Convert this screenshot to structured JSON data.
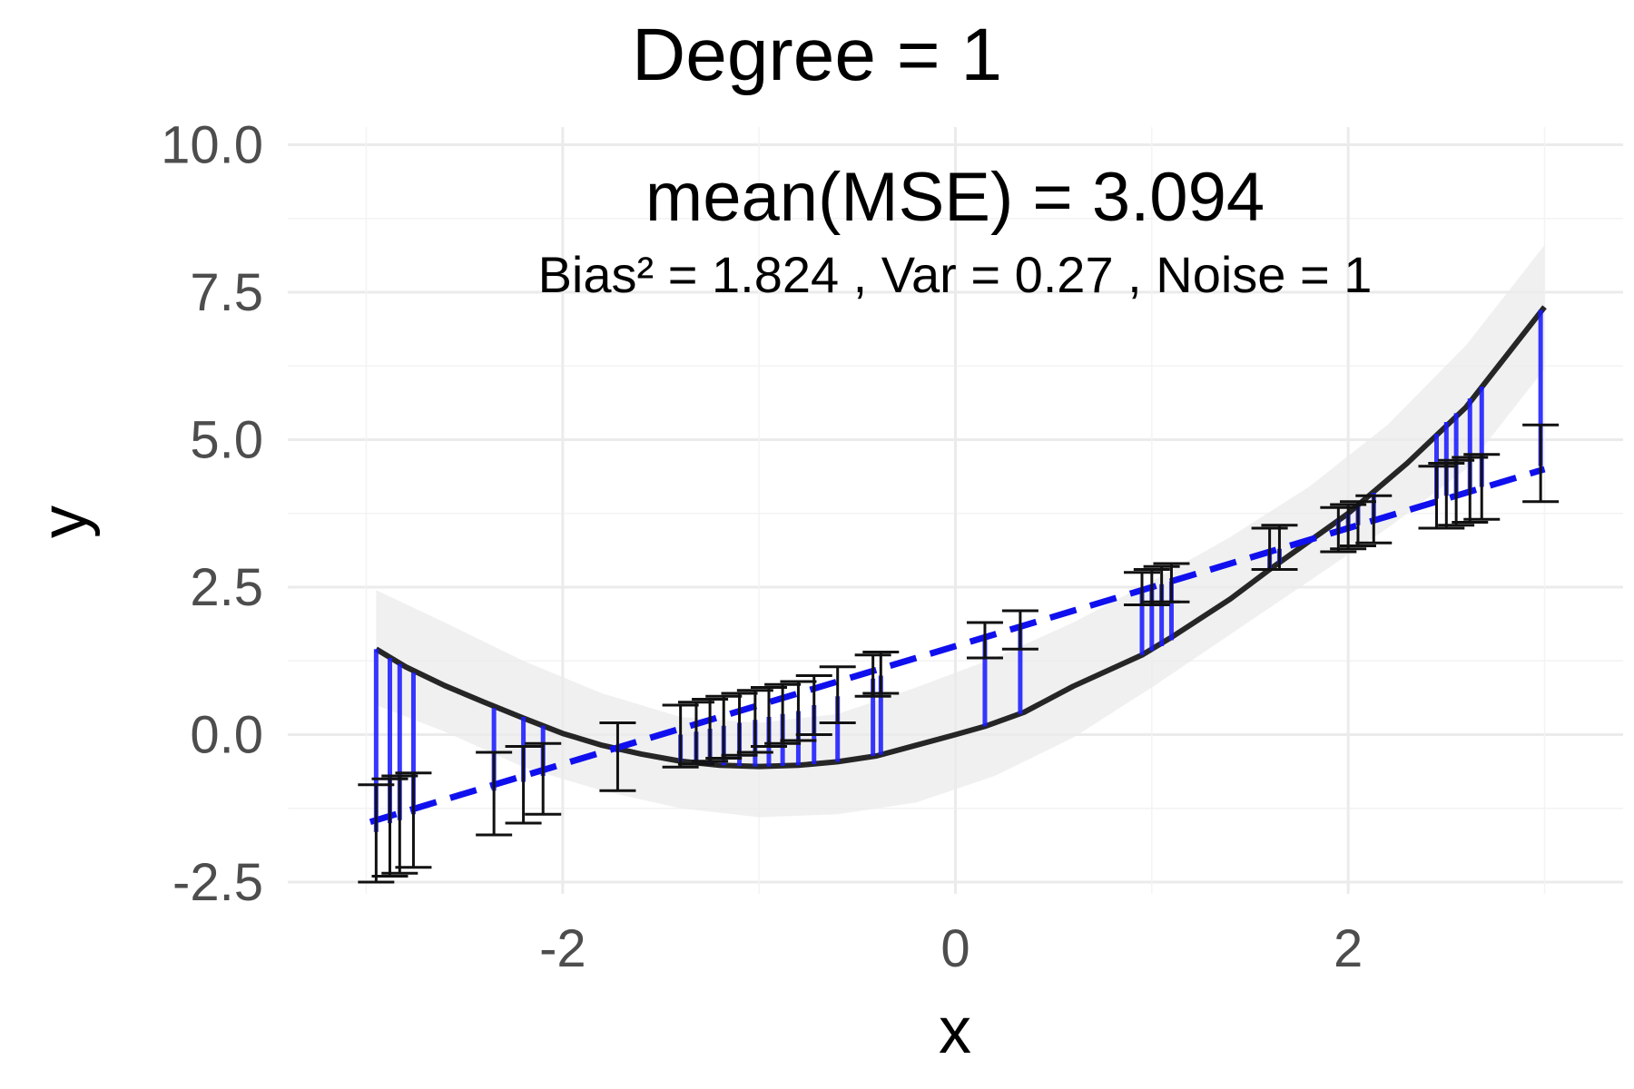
{
  "chart_data": {
    "type": "line",
    "title": "Degree = 1",
    "annotation_main": "mean(MSE) = 3.094",
    "annotation_sub": "Bias² = 1.824 , Var = 0.27 , Noise = 1",
    "xlabel": "x",
    "ylabel": "y",
    "xlim": [
      -3.4,
      3.4
    ],
    "ylim": [
      -2.7,
      10.3
    ],
    "x_ticks": [
      -2,
      0,
      2
    ],
    "x_tick_labels": [
      "-2",
      "0",
      "2"
    ],
    "y_ticks": [
      -2.5,
      0,
      2.5,
      5,
      7.5,
      10
    ],
    "y_tick_labels": [
      "-2.5",
      "0.0",
      "2.5",
      "5.0",
      "7.5",
      "10.0"
    ],
    "grid": true,
    "legend": "none",
    "colors": {
      "true_curve": "#262626",
      "fit_line": "#1010ee",
      "residual": "#1a1aff",
      "ribbon": "#ebebeb",
      "gridline": "#ebebeb",
      "errorbar": "#111111"
    },
    "fit_line": {
      "intercept": 1.5,
      "slope": 1.0
    },
    "true_curve": {
      "x": [
        -2.95,
        -2.8,
        -2.6,
        -2.4,
        -2.2,
        -2.0,
        -1.8,
        -1.6,
        -1.4,
        -1.2,
        -1.0,
        -0.8,
        -0.6,
        -0.4,
        -0.2,
        0.0,
        0.15,
        0.35,
        0.6,
        0.95,
        1.1,
        1.4,
        1.6,
        2.0,
        2.3,
        2.6,
        3.0
      ],
      "y": [
        1.45,
        1.15,
        0.83,
        0.55,
        0.28,
        0.02,
        -0.18,
        -0.33,
        -0.45,
        -0.52,
        -0.54,
        -0.52,
        -0.46,
        -0.36,
        -0.18,
        0.0,
        0.14,
        0.38,
        0.82,
        1.35,
        1.65,
        2.3,
        2.8,
        3.75,
        4.6,
        5.55,
        7.25
      ]
    },
    "ribbon": {
      "x": [
        -2.95,
        -2.6,
        -2.2,
        -1.8,
        -1.4,
        -1.0,
        -0.6,
        -0.2,
        0.2,
        0.6,
        1.0,
        1.4,
        1.8,
        2.2,
        2.6,
        3.0
      ],
      "lower": [
        0.5,
        0.05,
        -0.55,
        -0.95,
        -1.25,
        -1.4,
        -1.35,
        -1.15,
        -0.7,
        -0.05,
        0.8,
        1.7,
        2.6,
        3.5,
        4.5,
        6.2
      ],
      "upper": [
        2.45,
        1.9,
        1.25,
        0.7,
        0.3,
        0.2,
        0.35,
        0.8,
        1.3,
        1.9,
        2.6,
        3.35,
        4.2,
        5.25,
        6.6,
        8.3
      ]
    },
    "points": [
      {
        "x": -2.95,
        "pred": -1.65,
        "lo": -2.5,
        "hi": -0.85,
        "true": 1.45
      },
      {
        "x": -2.88,
        "pred": -1.5,
        "lo": -2.4,
        "hi": -0.75,
        "true": 1.3
      },
      {
        "x": -2.83,
        "pred": -1.45,
        "lo": -2.35,
        "hi": -0.7,
        "true": 1.2
      },
      {
        "x": -2.76,
        "pred": -1.35,
        "lo": -2.25,
        "hi": -0.65,
        "true": 1.05
      },
      {
        "x": -2.35,
        "pred": -0.95,
        "lo": -1.7,
        "hi": -0.3,
        "true": 0.45
      },
      {
        "x": -2.2,
        "pred": -0.8,
        "lo": -1.5,
        "hi": -0.2,
        "true": 0.3
      },
      {
        "x": -2.1,
        "pred": -0.7,
        "lo": -1.35,
        "hi": -0.15,
        "true": 0.15
      },
      {
        "x": -1.72,
        "pred": -0.3,
        "lo": -0.95,
        "hi": 0.2,
        "true": -0.22
      },
      {
        "x": -1.4,
        "pred": 0.0,
        "lo": -0.55,
        "hi": 0.5,
        "true": -0.45
      },
      {
        "x": -1.32,
        "pred": 0.05,
        "lo": -0.5,
        "hi": 0.55,
        "true": -0.48
      },
      {
        "x": -1.25,
        "pred": 0.1,
        "lo": -0.45,
        "hi": 0.6,
        "true": -0.5
      },
      {
        "x": -1.18,
        "pred": 0.15,
        "lo": -0.4,
        "hi": 0.65,
        "true": -0.52
      },
      {
        "x": -1.1,
        "pred": 0.2,
        "lo": -0.35,
        "hi": 0.7,
        "true": -0.53
      },
      {
        "x": -1.02,
        "pred": 0.25,
        "lo": -0.3,
        "hi": 0.75,
        "true": -0.54
      },
      {
        "x": -0.95,
        "pred": 0.3,
        "lo": -0.2,
        "hi": 0.8,
        "true": -0.54
      },
      {
        "x": -0.88,
        "pred": 0.35,
        "lo": -0.15,
        "hi": 0.85,
        "true": -0.53
      },
      {
        "x": -0.8,
        "pred": 0.4,
        "lo": -0.1,
        "hi": 0.9,
        "true": -0.52
      },
      {
        "x": -0.72,
        "pred": 0.5,
        "lo": 0.0,
        "hi": 1.0,
        "true": -0.5
      },
      {
        "x": -0.6,
        "pred": 0.65,
        "lo": 0.2,
        "hi": 1.15,
        "true": -0.46
      },
      {
        "x": -0.42,
        "pred": 0.95,
        "lo": 0.65,
        "hi": 1.35,
        "true": -0.36
      },
      {
        "x": -0.38,
        "pred": 1.0,
        "lo": 0.7,
        "hi": 1.4,
        "true": -0.34
      },
      {
        "x": 0.15,
        "pred": 1.6,
        "lo": 1.3,
        "hi": 1.9,
        "true": 0.14
      },
      {
        "x": 0.33,
        "pred": 1.8,
        "lo": 1.45,
        "hi": 2.1,
        "true": 0.35
      },
      {
        "x": 0.95,
        "pred": 2.45,
        "lo": 2.2,
        "hi": 2.75,
        "true": 1.35
      },
      {
        "x": 1.0,
        "pred": 2.5,
        "lo": 2.2,
        "hi": 2.8,
        "true": 1.42
      },
      {
        "x": 1.05,
        "pred": 2.55,
        "lo": 2.25,
        "hi": 2.85,
        "true": 1.5
      },
      {
        "x": 1.1,
        "pred": 2.6,
        "lo": 2.25,
        "hi": 2.9,
        "true": 1.6
      },
      {
        "x": 1.6,
        "pred": 3.1,
        "lo": 2.8,
        "hi": 3.5,
        "true": 2.8
      },
      {
        "x": 1.65,
        "pred": 3.15,
        "lo": 2.8,
        "hi": 3.55,
        "true": 2.9
      },
      {
        "x": 1.95,
        "pred": 3.45,
        "lo": 3.1,
        "hi": 3.85,
        "true": 3.65
      },
      {
        "x": 2.0,
        "pred": 3.5,
        "lo": 3.15,
        "hi": 3.9,
        "true": 3.75
      },
      {
        "x": 2.05,
        "pred": 3.55,
        "lo": 3.2,
        "hi": 3.95,
        "true": 3.9
      },
      {
        "x": 2.13,
        "pred": 3.65,
        "lo": 3.25,
        "hi": 4.05,
        "true": 4.1
      },
      {
        "x": 2.45,
        "pred": 4.0,
        "lo": 3.5,
        "hi": 4.55,
        "true": 5.1
      },
      {
        "x": 2.5,
        "pred": 4.05,
        "lo": 3.5,
        "hi": 4.6,
        "true": 5.3
      },
      {
        "x": 2.55,
        "pred": 4.1,
        "lo": 3.55,
        "hi": 4.65,
        "true": 5.45
      },
      {
        "x": 2.62,
        "pred": 4.15,
        "lo": 3.6,
        "hi": 4.7,
        "true": 5.7
      },
      {
        "x": 2.68,
        "pred": 4.2,
        "lo": 3.65,
        "hi": 4.75,
        "true": 5.9
      },
      {
        "x": 2.98,
        "pred": 4.55,
        "lo": 3.95,
        "hi": 5.25,
        "true": 7.2
      }
    ]
  }
}
